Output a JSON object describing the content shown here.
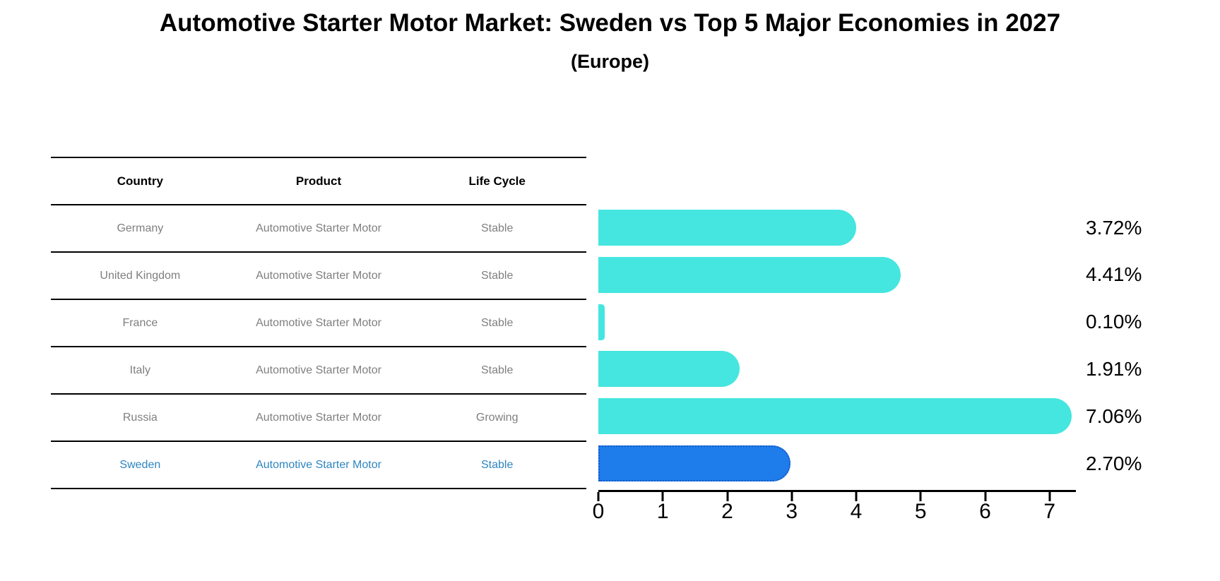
{
  "header": {
    "title": "Automotive Starter Motor Market: Sweden vs Top 5 Major Economies in 2027",
    "subtitle": "(Europe)"
  },
  "table": {
    "columns": [
      "Country",
      "Product",
      "Life Cycle"
    ],
    "rows": [
      {
        "country": "Germany",
        "product": "Automotive Starter Motor",
        "life_cycle": "Stable",
        "highlight": false
      },
      {
        "country": "United Kingdom",
        "product": "Automotive Starter Motor",
        "life_cycle": "Stable",
        "highlight": false
      },
      {
        "country": "France",
        "product": "Automotive Starter Motor",
        "life_cycle": "Stable",
        "highlight": false
      },
      {
        "country": "Italy",
        "product": "Automotive Starter Motor",
        "life_cycle": "Stable",
        "highlight": false
      },
      {
        "country": "Russia",
        "product": "Automotive Starter Motor",
        "life_cycle": "Growing",
        "highlight": false
      },
      {
        "country": "Sweden",
        "product": "Automotive Starter Motor",
        "life_cycle": "Stable",
        "highlight": true
      }
    ]
  },
  "chart_data": {
    "type": "bar",
    "orientation": "horizontal",
    "title": "Automotive Starter Motor Market: Sweden vs Top 5 Major Economies in 2027",
    "subtitle": "(Europe)",
    "categories": [
      "Germany",
      "United Kingdom",
      "France",
      "Italy",
      "Russia",
      "Sweden"
    ],
    "values": [
      3.72,
      4.41,
      0.1,
      1.91,
      7.06,
      2.7
    ],
    "value_labels": [
      "3.72%",
      "4.41%",
      "0.10%",
      "1.91%",
      "7.06%",
      "2.70%"
    ],
    "xlim": [
      0,
      7.4
    ],
    "xticks": [
      "0",
      "1",
      "2",
      "3",
      "4",
      "5",
      "6",
      "7"
    ],
    "grid": false,
    "legend": "none",
    "bar_color": "#45e6df",
    "highlight_bar_color": "#1f7deb",
    "highlight_bar_border_color": "#1358c4",
    "highlight_index": 5,
    "highlight_text_color": "#2e86c1",
    "table_text_color": "#7f7f7f"
  }
}
